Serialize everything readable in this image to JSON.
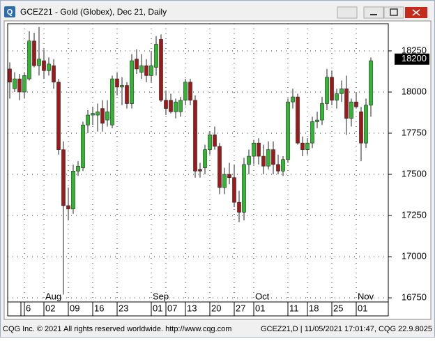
{
  "window": {
    "title": "GCEZ21 - Gold (Globex), Dec 21, Daily"
  },
  "footer": {
    "left": "CQG Inc. © 2021 All rights reserved worldwide. http://www.cqg.com",
    "right": "GCEZ21,D | 11/05/2021 17:01:47, CQG 22.9.8025"
  },
  "chart_data": {
    "type": "candlestick",
    "categories": [
      null,
      null,
      null,
      "6",
      null,
      null,
      null,
      "02",
      null,
      null,
      null,
      null,
      "09",
      null,
      null,
      null,
      null,
      "16",
      null,
      null,
      null,
      null,
      "23",
      null,
      null,
      null,
      null,
      null,
      null,
      "01",
      null,
      null,
      "07",
      null,
      null,
      null,
      "13",
      null,
      null,
      null,
      null,
      "20",
      null,
      null,
      null,
      null,
      "27",
      null,
      null,
      null,
      "01",
      null,
      null,
      null,
      null,
      null,
      null,
      "11",
      null,
      null,
      null,
      "18",
      null,
      null,
      null,
      null,
      "25",
      null,
      null,
      null,
      null,
      "01",
      null,
      null,
      null
    ],
    "months": [
      null,
      null,
      null,
      null,
      null,
      null,
      null,
      "Aug",
      null,
      null,
      null,
      null,
      null,
      null,
      null,
      null,
      null,
      null,
      null,
      null,
      null,
      null,
      null,
      null,
      null,
      null,
      null,
      null,
      null,
      "Sep",
      null,
      null,
      null,
      null,
      null,
      null,
      null,
      null,
      null,
      null,
      null,
      null,
      null,
      null,
      null,
      null,
      null,
      null,
      null,
      null,
      "Oct",
      null,
      null,
      null,
      null,
      null,
      null,
      null,
      null,
      null,
      null,
      null,
      null,
      null,
      null,
      null,
      null,
      null,
      null,
      null,
      null,
      "Nov",
      null,
      null,
      null
    ],
    "open": [
      18140,
      18020,
      18080,
      18000,
      18080,
      18310,
      18160,
      18190,
      18130,
      18160,
      18060,
      17650,
      17310,
      17290,
      17520,
      17540,
      17800,
      17860,
      17860,
      17900,
      17830,
      17800,
      18080,
      18030,
      18040,
      17930,
      18200,
      18120,
      18160,
      18100,
      18150,
      18320,
      17950,
      17950,
      17880,
      17880,
      17950,
      18060,
      17950,
      17530,
      17540,
      17650,
      17740,
      17670,
      17420,
      17500,
      17480,
      17330,
      17270,
      17560,
      17610,
      17690,
      17610,
      17550,
      17650,
      17560,
      17520,
      17590,
      17940,
      17970,
      17690,
      17650,
      17690,
      17820,
      17830,
      17930,
      18090,
      17950,
      17990,
      18020,
      17840,
      17940,
      17880,
      17690,
      17920
    ],
    "high": [
      18180,
      18120,
      18110,
      18120,
      18370,
      18360,
      18395,
      18260,
      18210,
      18200,
      18080,
      17700,
      17420,
      17560,
      17580,
      17820,
      17890,
      17910,
      17930,
      17950,
      17950,
      18100,
      18120,
      18090,
      18060,
      18230,
      18260,
      18230,
      18200,
      18250,
      18340,
      18350,
      18010,
      17990,
      17960,
      17970,
      18080,
      18080,
      17980,
      17570,
      17680,
      17760,
      17790,
      17690,
      17540,
      17570,
      17560,
      17400,
      17600,
      17650,
      17710,
      17720,
      17680,
      17700,
      17700,
      17620,
      17610,
      17960,
      18020,
      17990,
      17730,
      17720,
      17850,
      17880,
      17970,
      18140,
      18130,
      18020,
      18070,
      18100,
      17960,
      18000,
      17910,
      17960,
      18210
    ],
    "low": [
      17960,
      18000,
      17950,
      17960,
      18070,
      18150,
      18100,
      18080,
      18100,
      18020,
      17620,
      16770,
      17220,
      17260,
      17490,
      17520,
      17750,
      17800,
      17760,
      17760,
      17790,
      17780,
      17980,
      17920,
      17900,
      17900,
      18110,
      18080,
      18060,
      18060,
      18100,
      17940,
      17860,
      17870,
      17840,
      17850,
      17920,
      17920,
      17480,
      17480,
      17500,
      17620,
      17650,
      17380,
      17380,
      17440,
      17300,
      17210,
      17220,
      17500,
      17560,
      17560,
      17500,
      17530,
      17500,
      17500,
      17490,
      17570,
      17900,
      17680,
      17610,
      17620,
      17660,
      17780,
      17800,
      17890,
      17920,
      17900,
      17940,
      17740,
      17790,
      17900,
      17580,
      17660,
      17850
    ],
    "close": [
      18060,
      18080,
      18000,
      18100,
      18310,
      18160,
      18200,
      18130,
      18170,
      18060,
      17650,
      17310,
      17290,
      17520,
      17550,
      17800,
      17860,
      17870,
      17880,
      17810,
      17880,
      18080,
      18030,
      18040,
      17930,
      18190,
      18140,
      18160,
      18100,
      18160,
      18290,
      17950,
      17900,
      17880,
      17940,
      17950,
      18060,
      17950,
      17520,
      17520,
      17650,
      17740,
      17670,
      17420,
      17500,
      17480,
      17330,
      17270,
      17560,
      17610,
      17690,
      17610,
      17550,
      17650,
      17560,
      17520,
      17590,
      17940,
      17970,
      17690,
      17650,
      17690,
      17820,
      17830,
      17930,
      18090,
      17950,
      17990,
      18020,
      17840,
      17940,
      17910,
      17690,
      17920,
      18190
    ],
    "up_color": "#2eb82e",
    "down_color": "#a01818",
    "ylim": [
      16725,
      18415
    ],
    "yticks": [
      16750,
      17000,
      17250,
      17500,
      17750,
      18000,
      18250
    ],
    "last_price": 18200,
    "grid": true
  }
}
